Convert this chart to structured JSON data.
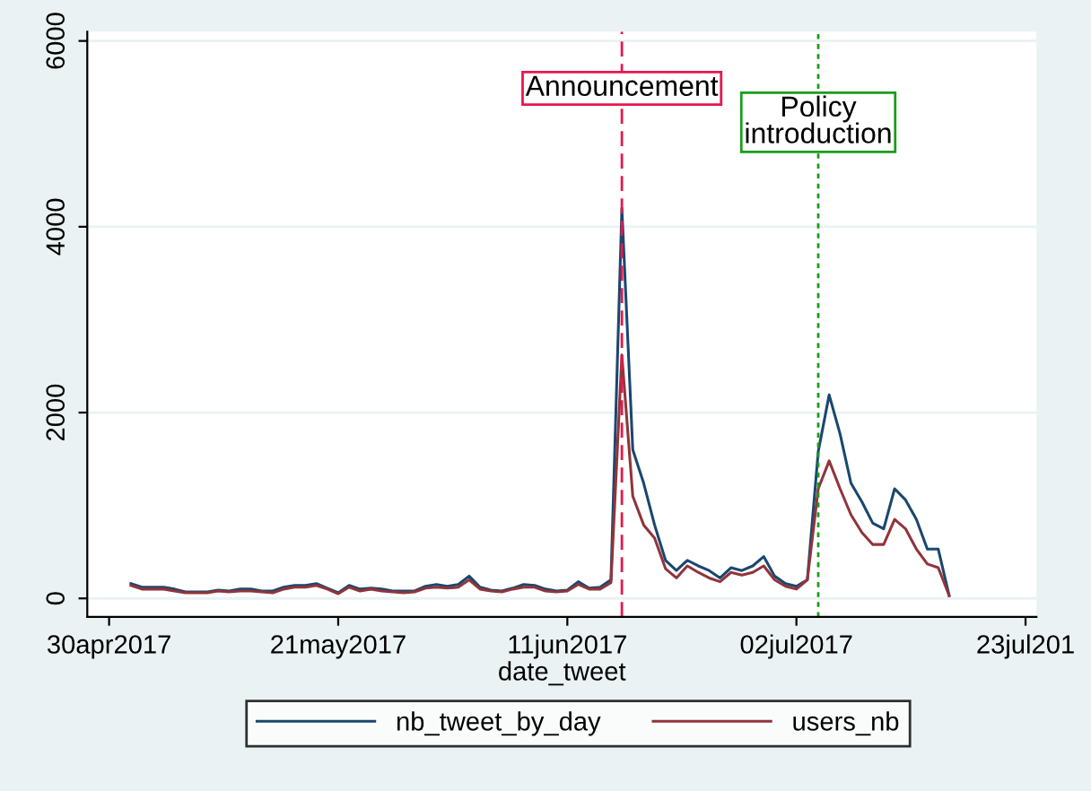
{
  "chart_data": {
    "type": "line",
    "xlabel": "date_tweet",
    "x": [
      "2017-05-02",
      "2017-05-03",
      "2017-05-04",
      "2017-05-05",
      "2017-05-06",
      "2017-05-07",
      "2017-05-08",
      "2017-05-09",
      "2017-05-10",
      "2017-05-11",
      "2017-05-12",
      "2017-05-13",
      "2017-05-14",
      "2017-05-15",
      "2017-05-16",
      "2017-05-17",
      "2017-05-18",
      "2017-05-19",
      "2017-05-20",
      "2017-05-21",
      "2017-05-22",
      "2017-05-23",
      "2017-05-24",
      "2017-05-25",
      "2017-05-26",
      "2017-05-27",
      "2017-05-28",
      "2017-05-29",
      "2017-05-30",
      "2017-05-31",
      "2017-06-01",
      "2017-06-02",
      "2017-06-03",
      "2017-06-04",
      "2017-06-05",
      "2017-06-06",
      "2017-06-07",
      "2017-06-08",
      "2017-06-09",
      "2017-06-10",
      "2017-06-11",
      "2017-06-12",
      "2017-06-13",
      "2017-06-14",
      "2017-06-15",
      "2017-06-16",
      "2017-06-17",
      "2017-06-18",
      "2017-06-19",
      "2017-06-20",
      "2017-06-21",
      "2017-06-22",
      "2017-06-23",
      "2017-06-24",
      "2017-06-25",
      "2017-06-26",
      "2017-06-27",
      "2017-06-28",
      "2017-06-29",
      "2017-06-30",
      "2017-07-01",
      "2017-07-02",
      "2017-07-03",
      "2017-07-04",
      "2017-07-05",
      "2017-07-06",
      "2017-07-07",
      "2017-07-08",
      "2017-07-09",
      "2017-07-10",
      "2017-07-11",
      "2017-07-12",
      "2017-07-13",
      "2017-07-14",
      "2017-07-15",
      "2017-07-16"
    ],
    "series": [
      {
        "name": "nb_tweet_by_day",
        "color": "#1a476f",
        "values": [
          160,
          120,
          120,
          120,
          100,
          70,
          70,
          70,
          90,
          80,
          100,
          100,
          80,
          80,
          120,
          140,
          140,
          160,
          110,
          60,
          140,
          100,
          110,
          100,
          80,
          80,
          80,
          130,
          150,
          130,
          150,
          240,
          120,
          90,
          80,
          110,
          150,
          140,
          100,
          80,
          90,
          180,
          110,
          120,
          200,
          4200,
          1600,
          1240,
          790,
          410,
          300,
          410,
          350,
          300,
          220,
          330,
          300,
          350,
          450,
          240,
          160,
          130,
          200,
          1580,
          2190,
          1770,
          1240,
          1040,
          810,
          750,
          1180,
          1060,
          850,
          530,
          530,
          30
        ]
      },
      {
        "name": "users_nb",
        "color": "#90353b",
        "values": [
          140,
          100,
          100,
          100,
          80,
          60,
          60,
          60,
          80,
          70,
          80,
          80,
          70,
          60,
          100,
          120,
          120,
          140,
          100,
          50,
          120,
          80,
          100,
          80,
          70,
          60,
          70,
          110,
          120,
          110,
          120,
          200,
          100,
          80,
          70,
          100,
          120,
          120,
          80,
          70,
          80,
          150,
          100,
          100,
          170,
          2620,
          1100,
          790,
          650,
          320,
          220,
          350,
          280,
          220,
          180,
          280,
          250,
          280,
          350,
          200,
          130,
          100,
          200,
          1180,
          1480,
          1180,
          900,
          710,
          580,
          580,
          850,
          750,
          530,
          370,
          330,
          30
        ]
      }
    ],
    "xlim": [
      "2017-04-28",
      "2017-07-24"
    ],
    "xticks": [
      {
        "value": "2017-04-30",
        "label": "30apr2017"
      },
      {
        "value": "2017-05-21",
        "label": "21may2017"
      },
      {
        "value": "2017-06-11",
        "label": "11jun2017"
      },
      {
        "value": "2017-07-02",
        "label": "02jul2017"
      },
      {
        "value": "2017-07-23",
        "label": "23jul201"
      }
    ],
    "ylim": [
      -200,
      6100
    ],
    "yticks": [
      0,
      2000,
      4000,
      6000
    ],
    "ref_lines": [
      {
        "axis": "x",
        "value": "2017-06-16",
        "label": "Announcement",
        "color": "#e8174b",
        "line_style": "dashed"
      },
      {
        "axis": "x",
        "value": "2017-07-04",
        "label": "Policy\nintroduction",
        "color": "#1a9c1a",
        "line_style": "dotted"
      }
    ],
    "grid": "y",
    "legend": "bottom",
    "marker": "none",
    "line_style": "solid"
  }
}
